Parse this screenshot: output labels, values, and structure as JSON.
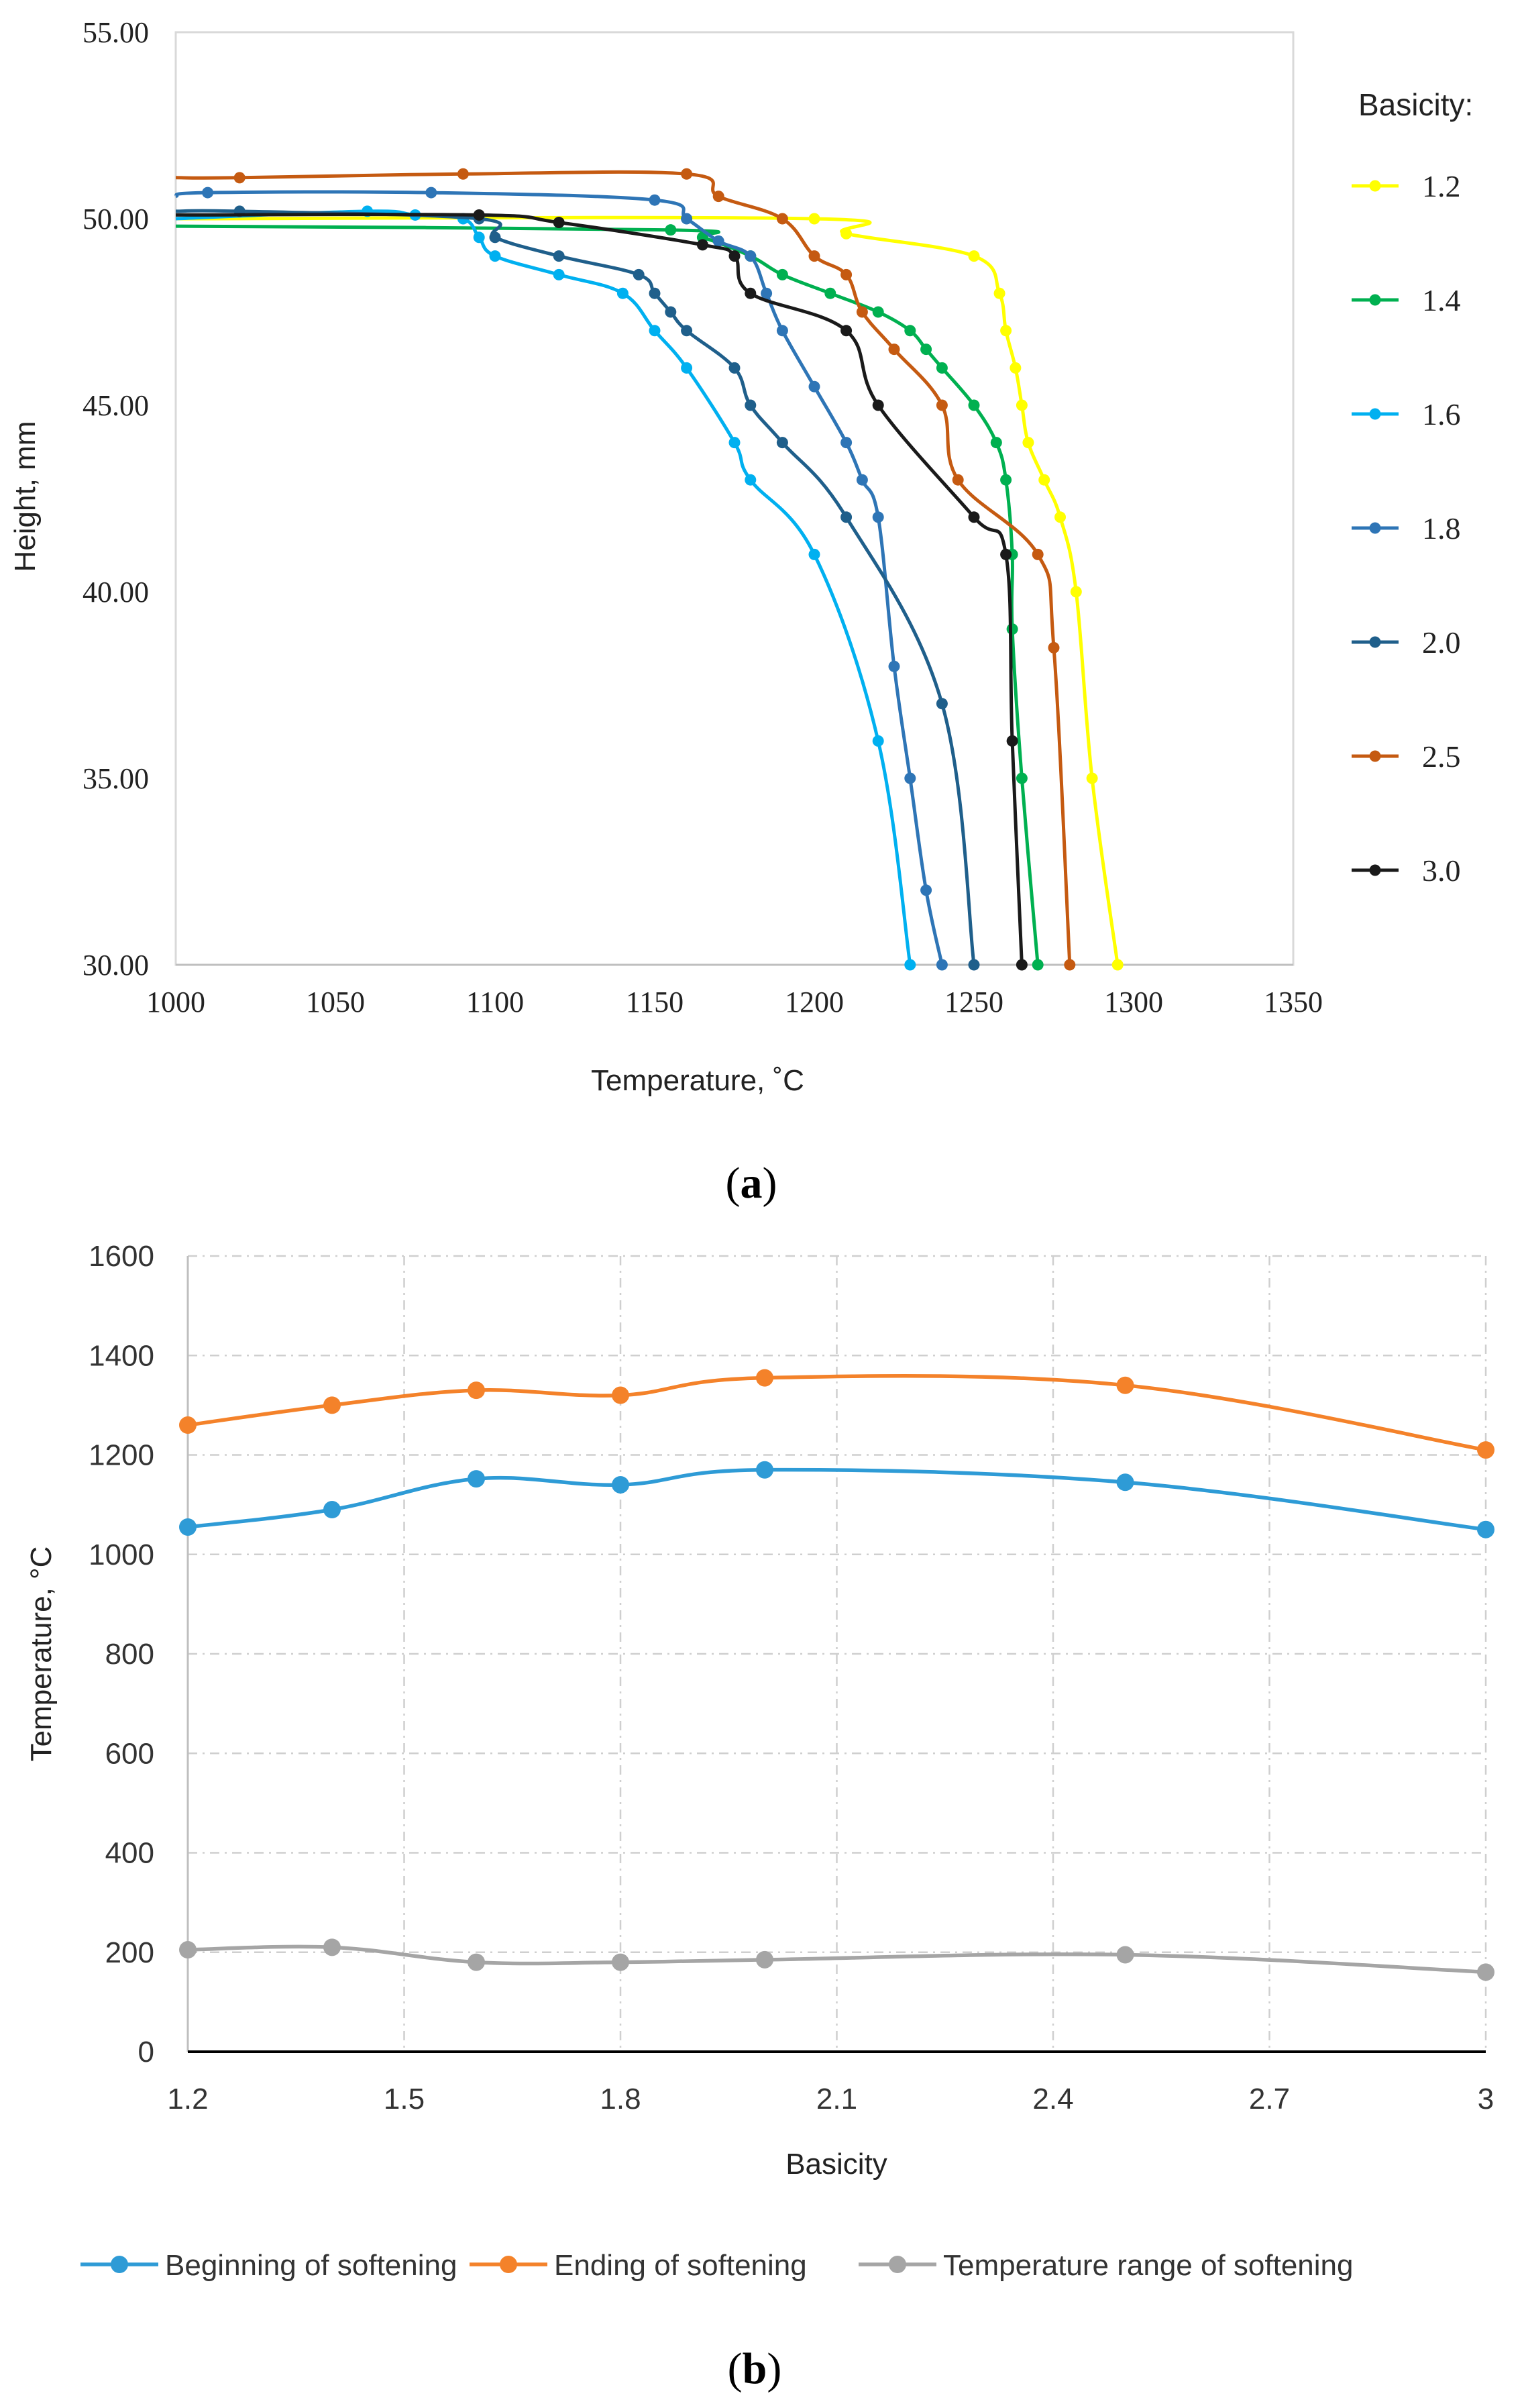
{
  "chart_data": [
    {
      "type": "line",
      "panel_label": "a",
      "xlabel": "Temperature, ˚C",
      "ylabel": "Height, mm",
      "xlim": [
        1000,
        1350
      ],
      "ylim": [
        30,
        55
      ],
      "x_ticks": [
        "1000",
        "1050",
        "1100",
        "1150",
        "1200",
        "1250",
        "1300",
        "1350"
      ],
      "y_ticks": [
        "30.00",
        "35.00",
        "40.00",
        "45.00",
        "50.00",
        "55.00"
      ],
      "legend_title": "Basicity:",
      "legend_position": "right",
      "series": [
        {
          "name": "1.2",
          "color": "#ffff00",
          "points": [
            [
              1000,
              50
            ],
            [
              1200,
              50
            ],
            [
              1210,
              49.6
            ],
            [
              1250,
              49
            ],
            [
              1258,
              48
            ],
            [
              1260,
              47
            ],
            [
              1263,
              46
            ],
            [
              1265,
              45
            ],
            [
              1267,
              44
            ],
            [
              1272,
              43
            ],
            [
              1277,
              42
            ],
            [
              1282,
              40
            ],
            [
              1287,
              35
            ],
            [
              1295,
              30
            ]
          ]
        },
        {
          "name": "1.4",
          "color": "#00b050",
          "points": [
            [
              1000,
              49.8
            ],
            [
              1155,
              49.7
            ],
            [
              1165,
              49.5
            ],
            [
              1180,
              49
            ],
            [
              1190,
              48.5
            ],
            [
              1205,
              48
            ],
            [
              1220,
              47.5
            ],
            [
              1230,
              47
            ],
            [
              1235,
              46.5
            ],
            [
              1240,
              46
            ],
            [
              1250,
              45
            ],
            [
              1257,
              44
            ],
            [
              1260,
              43
            ],
            [
              1262,
              41
            ],
            [
              1262,
              39
            ],
            [
              1265,
              35
            ],
            [
              1270,
              30
            ]
          ]
        },
        {
          "name": "1.6",
          "color": "#00b0f0",
          "points": [
            [
              1000,
              50
            ],
            [
              1060,
              50.2
            ],
            [
              1075,
              50.1
            ],
            [
              1090,
              50
            ],
            [
              1095,
              49.5
            ],
            [
              1100,
              49
            ],
            [
              1120,
              48.5
            ],
            [
              1140,
              48
            ],
            [
              1150,
              47
            ],
            [
              1160,
              46
            ],
            [
              1175,
              44
            ],
            [
              1180,
              43
            ],
            [
              1200,
              41
            ],
            [
              1220,
              36
            ],
            [
              1230,
              30
            ]
          ]
        },
        {
          "name": "1.8",
          "color": "#2e75b6",
          "points": [
            [
              1000,
              50.6
            ],
            [
              1010,
              50.7
            ],
            [
              1080,
              50.7
            ],
            [
              1150,
              50.5
            ],
            [
              1160,
              50
            ],
            [
              1170,
              49.4
            ],
            [
              1180,
              49
            ],
            [
              1185,
              48
            ],
            [
              1190,
              47
            ],
            [
              1200,
              45.5
            ],
            [
              1210,
              44
            ],
            [
              1215,
              43
            ],
            [
              1220,
              42
            ],
            [
              1225,
              38
            ],
            [
              1230,
              35
            ],
            [
              1235,
              32
            ],
            [
              1240,
              30
            ]
          ]
        },
        {
          "name": "2.0",
          "color": "#1f5f8b",
          "points": [
            [
              1000,
              50.2
            ],
            [
              1020,
              50.2
            ],
            [
              1095,
              50
            ],
            [
              1100,
              49.5
            ],
            [
              1120,
              49
            ],
            [
              1145,
              48.5
            ],
            [
              1150,
              48
            ],
            [
              1155,
              47.5
            ],
            [
              1160,
              47
            ],
            [
              1175,
              46
            ],
            [
              1180,
              45
            ],
            [
              1190,
              44
            ],
            [
              1210,
              42
            ],
            [
              1240,
              37
            ],
            [
              1250,
              30
            ]
          ]
        },
        {
          "name": "2.5",
          "color": "#c55a11",
          "points": [
            [
              1000,
              51.1
            ],
            [
              1020,
              51.1
            ],
            [
              1090,
              51.2
            ],
            [
              1160,
              51.2
            ],
            [
              1170,
              50.6
            ],
            [
              1190,
              50
            ],
            [
              1200,
              49
            ],
            [
              1210,
              48.5
            ],
            [
              1215,
              47.5
            ],
            [
              1225,
              46.5
            ],
            [
              1240,
              45
            ],
            [
              1245,
              43
            ],
            [
              1270,
              41
            ],
            [
              1275,
              38.5
            ],
            [
              1280,
              30
            ]
          ]
        },
        {
          "name": "3.0",
          "color": "#1a1a1a",
          "points": [
            [
              1000,
              50.1
            ],
            [
              1095,
              50.1
            ],
            [
              1120,
              49.9
            ],
            [
              1165,
              49.3
            ],
            [
              1175,
              49
            ],
            [
              1180,
              48
            ],
            [
              1210,
              47
            ],
            [
              1220,
              45
            ],
            [
              1250,
              42
            ],
            [
              1260,
              41
            ],
            [
              1262,
              36
            ],
            [
              1265,
              30
            ]
          ]
        }
      ]
    },
    {
      "type": "line",
      "panel_label": "b",
      "xlabel": "Basicity",
      "ylabel": "Temperature, °C",
      "xlim": [
        1.2,
        3
      ],
      "ylim": [
        0,
        1600
      ],
      "x_ticks": [
        "1.2",
        "1.5",
        "1.8",
        "2.1",
        "2.4",
        "2.7",
        "3"
      ],
      "y_ticks": [
        "0",
        "200",
        "400",
        "600",
        "800",
        "1000",
        "1200",
        "1400",
        "1600"
      ],
      "grid": true,
      "legend_position": "bottom",
      "x": [
        1.2,
        1.4,
        1.6,
        1.8,
        2.0,
        2.5,
        3.0
      ],
      "series": [
        {
          "name": "Beginning of softening",
          "color": "#2e9bd6",
          "values": [
            1055,
            1090,
            1152,
            1140,
            1170,
            1145,
            1050
          ]
        },
        {
          "name": "Ending of softening",
          "color": "#f4822a",
          "values": [
            1260,
            1300,
            1330,
            1320,
            1355,
            1340,
            1210
          ]
        },
        {
          "name": "Temperature range of softening",
          "color": "#a5a5a5",
          "values": [
            205,
            210,
            180,
            180,
            185,
            195,
            160
          ]
        }
      ]
    }
  ]
}
